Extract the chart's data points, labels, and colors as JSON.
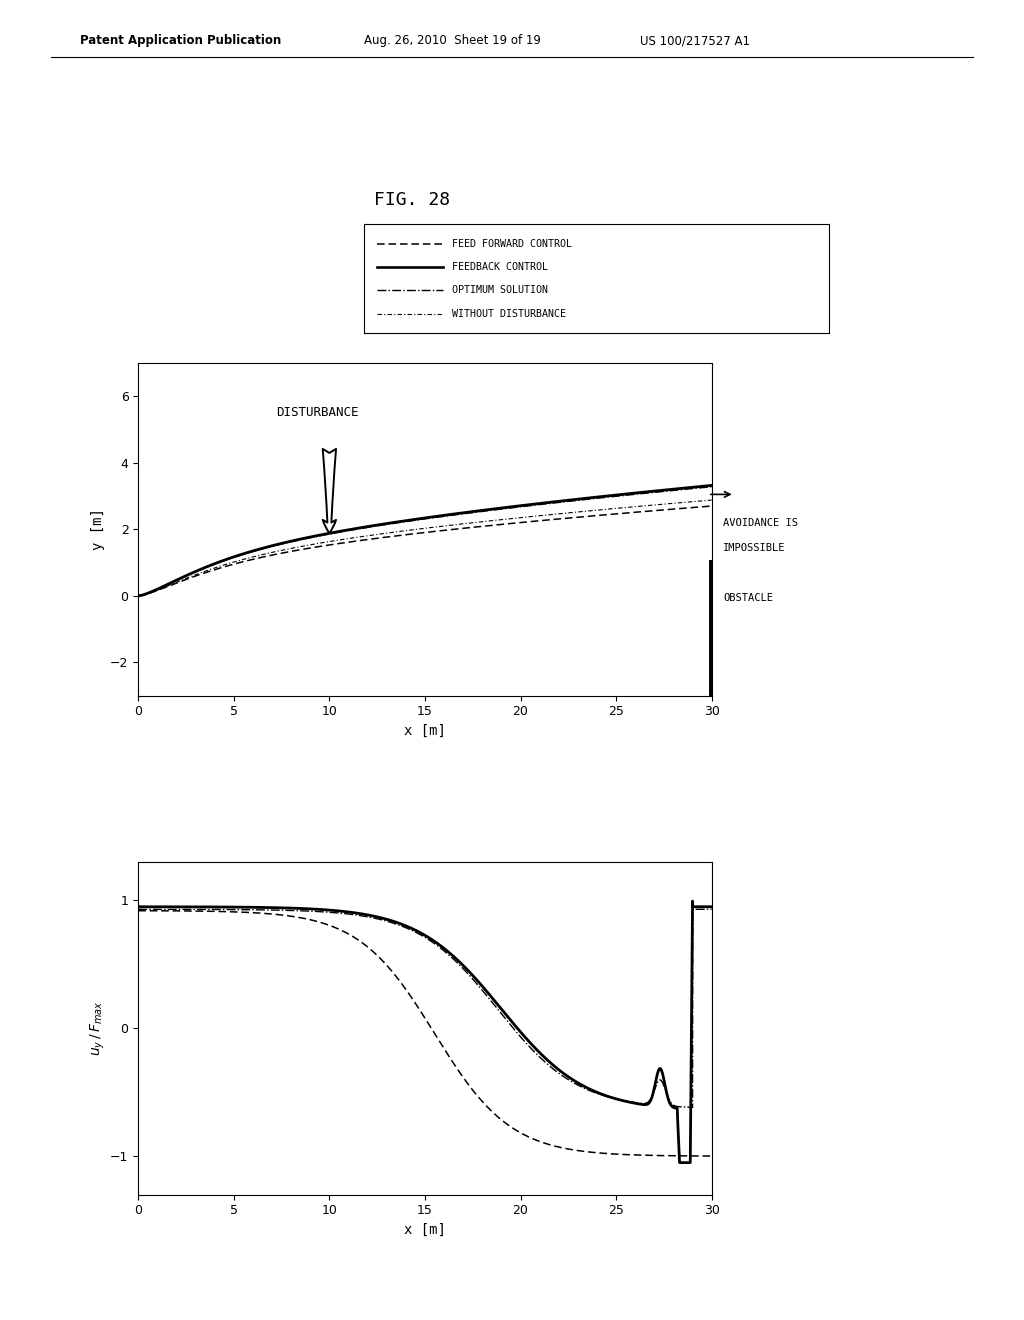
{
  "title": "FIG. 28",
  "patent_left": "Patent Application Publication",
  "patent_mid": "Aug. 26, 2010  Sheet 19 of 19",
  "patent_right": "US 100/217527 A1",
  "legend_labels": [
    "FEED FORWARD CONTROL",
    "FEEDBACK CONTROL",
    "OPTIMUM SOLUTION",
    "WITHOUT DISTURBANCE"
  ],
  "top_plot": {
    "xlabel": "x [m]",
    "ylabel": "y [m]",
    "xlim": [
      0,
      30
    ],
    "ylim": [
      -3,
      7
    ],
    "yticks": [
      -2,
      0,
      2,
      4,
      6
    ],
    "xticks": [
      0,
      5,
      10,
      15,
      20,
      25,
      30
    ],
    "disturbance_label": "DISTURBANCE",
    "avoidance_label": "AVOIDANCE IS",
    "impossible_label": "IMPOSSIBLE",
    "obstacle_label": "OBSTACLE"
  },
  "bottom_plot": {
    "xlabel": "x [m]",
    "ylabel": "u_y / F_max",
    "xlim": [
      0,
      30
    ],
    "ylim": [
      -1.3,
      1.3
    ],
    "yticks": [
      -1,
      0,
      1
    ],
    "xticks": [
      0,
      5,
      10,
      15,
      20,
      25,
      30
    ]
  },
  "bg_color": "#ffffff",
  "line_color": "#000000"
}
